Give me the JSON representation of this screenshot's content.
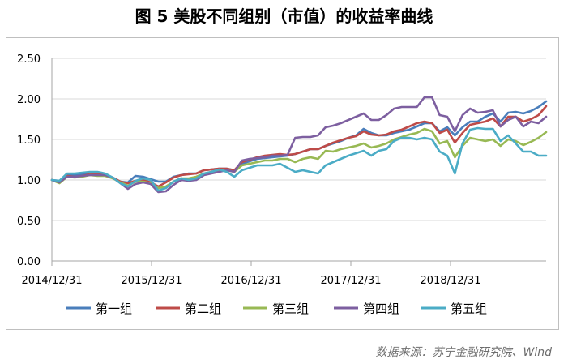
{
  "title": "图 5  美股不同组别（市值）的收益率曲线",
  "source": "数据来源：苏宁金融研究院、Wind",
  "chart_data": {
    "type": "line",
    "title": "图 5  美股不同组别（市值）的收益率曲线",
    "xlabel": "",
    "ylabel": "",
    "ylim": [
      0,
      2.5
    ],
    "yticks": [
      "0.00",
      "0.50",
      "1.00",
      "1.50",
      "2.00",
      "2.50"
    ],
    "xticks": [
      "2014/12/31",
      "2015/12/31",
      "2016/12/31",
      "2017/12/31",
      "2018/12/31"
    ],
    "grid": true,
    "legend": "bottom",
    "x_months_total": 60,
    "series": [
      {
        "name": "第一组",
        "color": "#4a7ebb",
        "values": [
          1.0,
          0.99,
          1.06,
          1.06,
          1.07,
          1.08,
          1.08,
          1.07,
          1.03,
          0.98,
          0.97,
          1.05,
          1.04,
          1.01,
          0.98,
          0.98,
          1.04,
          1.06,
          1.08,
          1.08,
          1.12,
          1.13,
          1.14,
          1.14,
          1.12,
          1.2,
          1.23,
          1.26,
          1.27,
          1.28,
          1.29,
          1.3,
          1.32,
          1.35,
          1.38,
          1.38,
          1.42,
          1.45,
          1.48,
          1.52,
          1.55,
          1.63,
          1.58,
          1.55,
          1.55,
          1.58,
          1.6,
          1.62,
          1.66,
          1.7,
          1.7,
          1.6,
          1.65,
          1.55,
          1.65,
          1.72,
          1.72,
          1.78,
          1.82,
          1.72,
          1.83,
          1.84,
          1.82,
          1.85,
          1.9,
          1.97
        ]
      },
      {
        "name": "第二组",
        "color": "#be4b48",
        "values": [
          1.0,
          0.98,
          1.05,
          1.04,
          1.05,
          1.07,
          1.07,
          1.06,
          1.03,
          0.98,
          0.96,
          0.99,
          1.0,
          0.97,
          0.92,
          0.97,
          1.03,
          1.06,
          1.07,
          1.08,
          1.12,
          1.13,
          1.14,
          1.14,
          1.12,
          1.22,
          1.25,
          1.28,
          1.3,
          1.31,
          1.32,
          1.31,
          1.32,
          1.35,
          1.38,
          1.38,
          1.42,
          1.46,
          1.49,
          1.52,
          1.54,
          1.6,
          1.56,
          1.55,
          1.56,
          1.6,
          1.62,
          1.66,
          1.7,
          1.72,
          1.7,
          1.58,
          1.62,
          1.46,
          1.58,
          1.68,
          1.7,
          1.72,
          1.76,
          1.66,
          1.78,
          1.78,
          1.72,
          1.75,
          1.8,
          1.91
        ]
      },
      {
        "name": "第三组",
        "color": "#98b954",
        "values": [
          1.0,
          0.96,
          1.04,
          1.03,
          1.04,
          1.06,
          1.05,
          1.05,
          1.02,
          0.97,
          0.93,
          0.98,
          0.98,
          0.96,
          0.9,
          0.92,
          0.98,
          1.02,
          1.02,
          1.04,
          1.08,
          1.1,
          1.12,
          1.12,
          1.1,
          1.18,
          1.2,
          1.22,
          1.24,
          1.24,
          1.26,
          1.26,
          1.22,
          1.26,
          1.28,
          1.26,
          1.36,
          1.35,
          1.38,
          1.4,
          1.42,
          1.45,
          1.4,
          1.42,
          1.45,
          1.5,
          1.53,
          1.56,
          1.58,
          1.63,
          1.6,
          1.45,
          1.48,
          1.28,
          1.42,
          1.52,
          1.5,
          1.48,
          1.5,
          1.42,
          1.5,
          1.48,
          1.43,
          1.47,
          1.52,
          1.59
        ]
      },
      {
        "name": "第四组",
        "color": "#7d5fa0",
        "values": [
          1.0,
          0.97,
          1.04,
          1.04,
          1.05,
          1.06,
          1.06,
          1.06,
          1.03,
          0.96,
          0.89,
          0.95,
          0.97,
          0.95,
          0.85,
          0.86,
          0.94,
          1.0,
          0.99,
          1.0,
          1.06,
          1.08,
          1.1,
          1.12,
          1.1,
          1.24,
          1.26,
          1.27,
          1.28,
          1.3,
          1.3,
          1.31,
          1.52,
          1.53,
          1.53,
          1.55,
          1.65,
          1.67,
          1.7,
          1.74,
          1.78,
          1.82,
          1.74,
          1.74,
          1.8,
          1.88,
          1.9,
          1.9,
          1.9,
          2.02,
          2.02,
          1.8,
          1.78,
          1.6,
          1.8,
          1.88,
          1.83,
          1.84,
          1.86,
          1.66,
          1.74,
          1.78,
          1.66,
          1.72,
          1.7,
          1.78
        ]
      },
      {
        "name": "第五组",
        "color": "#4bacc6",
        "values": [
          1.0,
          0.99,
          1.08,
          1.08,
          1.09,
          1.1,
          1.1,
          1.08,
          1.03,
          0.96,
          0.92,
          0.99,
          1.02,
          1.0,
          0.87,
          0.9,
          0.98,
          1.02,
          1.0,
          1.02,
          1.08,
          1.1,
          1.13,
          1.1,
          1.04,
          1.12,
          1.15,
          1.18,
          1.18,
          1.18,
          1.2,
          1.15,
          1.1,
          1.12,
          1.1,
          1.08,
          1.18,
          1.22,
          1.26,
          1.3,
          1.33,
          1.36,
          1.3,
          1.36,
          1.38,
          1.48,
          1.52,
          1.52,
          1.5,
          1.52,
          1.5,
          1.35,
          1.3,
          1.08,
          1.45,
          1.62,
          1.64,
          1.63,
          1.63,
          1.48,
          1.55,
          1.45,
          1.35,
          1.35,
          1.3,
          1.3
        ]
      }
    ]
  }
}
